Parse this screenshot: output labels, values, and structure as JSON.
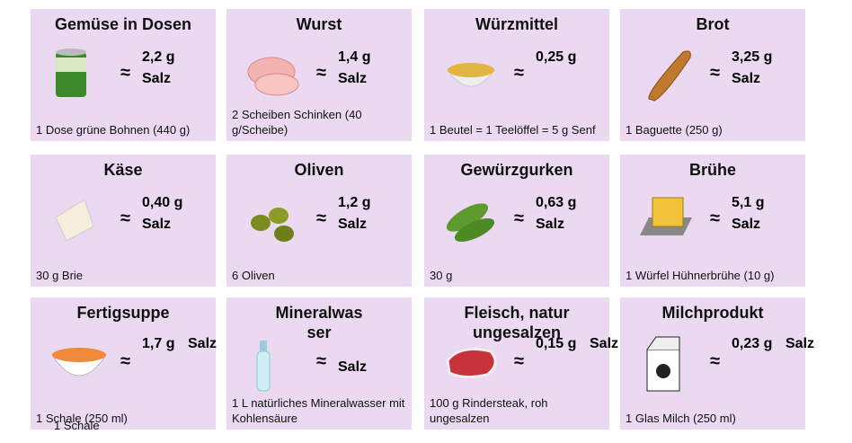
{
  "cards": [
    {
      "title": "Gemüse in Dosen",
      "approx": "≈",
      "amount": "2,2 g",
      "unit": "Salz",
      "portion": "1 Dose grüne Bohnen (440 g)"
    },
    {
      "title": "Wurst",
      "approx": "≈",
      "amount": "1,4 g",
      "unit": "Salz",
      "portion": "2 Scheiben Schinken (40 g/Scheibe)"
    },
    {
      "title": "Würzmittel",
      "approx": "≈",
      "amount": "0,25 g",
      "unit": "",
      "portion": "1 Beutel = 1 Teelöffel = 5 g Senf"
    },
    {
      "title": "Brot",
      "approx": "≈",
      "amount": "3,25 g",
      "unit": "Salz",
      "portion": "1 Baguette (250 g)"
    },
    {
      "title": "Käse",
      "approx": "≈",
      "amount": "0,40 g",
      "unit": "Salz",
      "portion": "30 g Brie"
    },
    {
      "title": "Oliven",
      "approx": "≈",
      "amount": "1,2 g",
      "unit": "Salz",
      "portion": "6 Oliven"
    },
    {
      "title": "Gewürzgurken",
      "approx": "≈",
      "amount": "0,63 g",
      "unit": "Salz",
      "portion": "30 g"
    },
    {
      "title": "Brühe",
      "approx": "≈",
      "amount": "5,1 g",
      "unit": "Salz",
      "portion": "1 Würfel Hühnerbrühe  (10 g)"
    },
    {
      "title": "Fertigsuppe",
      "approx": "≈",
      "amount": "1,7 g",
      "unit": "Salz",
      "portion": "1 Schale (250 ml)",
      "portion_overlay": "1 Schale"
    },
    {
      "title": "Mineralwasser",
      "approx": "≈",
      "amount": "",
      "unit": "Salz",
      "portion": "1 L natürliches Mineralwasser mit Kohlensäure"
    },
    {
      "title": "Fleisch, natur ungesalzen",
      "approx": "≈",
      "amount": "0,15 g",
      "unit": "Salz",
      "portion": "100 g Rindersteak, roh ungesalzen"
    },
    {
      "title": "Milchprodukt",
      "approx": "≈",
      "amount": "0,23 g",
      "unit": "Salz",
      "portion": "1 Glas Milch (250 ml)"
    }
  ]
}
